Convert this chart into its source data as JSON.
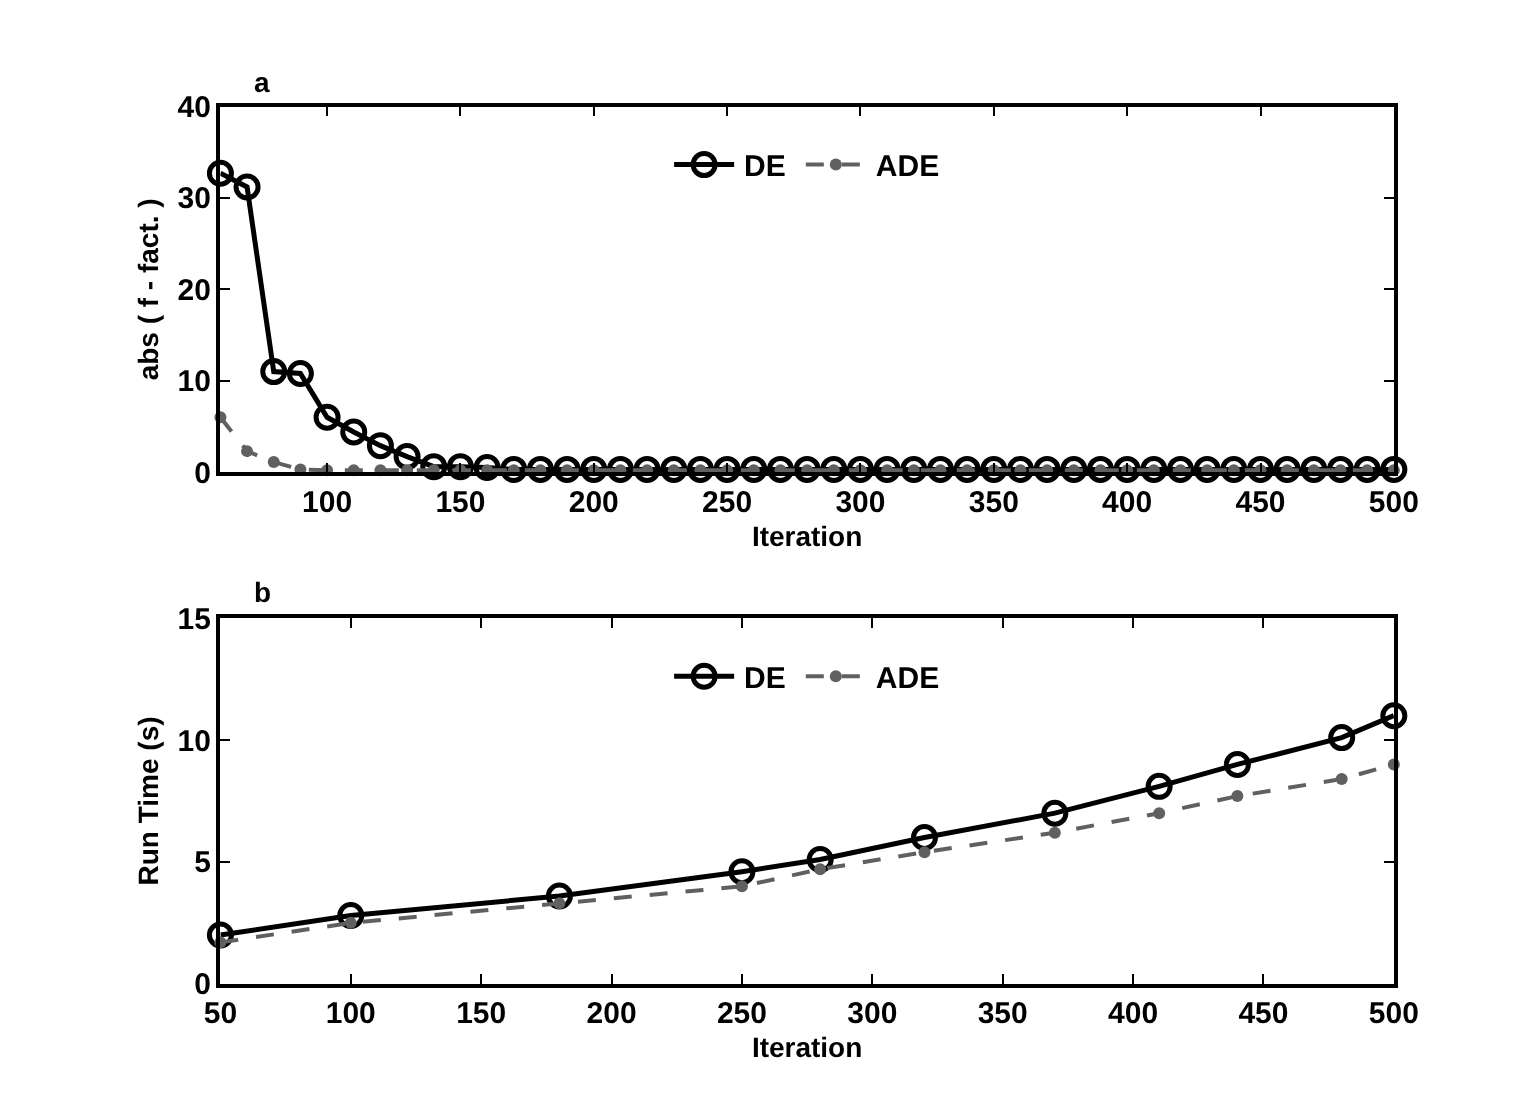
{
  "chart_data": [
    {
      "type": "line",
      "title": "a",
      "xlabel": "Iteration",
      "ylabel": "abs ( f - fact. )",
      "xlim": [
        60,
        500
      ],
      "ylim": [
        0,
        40
      ],
      "xticks": [
        100,
        150,
        200,
        250,
        300,
        350,
        400,
        450,
        500
      ],
      "yticks": [
        0,
        10,
        20,
        30,
        40
      ],
      "legend": "top",
      "x": [
        60,
        70,
        80,
        90,
        100,
        110,
        120,
        130,
        140,
        150,
        160,
        170,
        180,
        190,
        200,
        210,
        220,
        230,
        240,
        250,
        260,
        270,
        280,
        290,
        300,
        310,
        320,
        330,
        340,
        350,
        360,
        370,
        380,
        390,
        400,
        410,
        420,
        430,
        440,
        450,
        460,
        470,
        480,
        490,
        500
      ],
      "series": [
        {
          "name": "DE",
          "color": "#000000",
          "marker": "circle",
          "line_style": "solid",
          "values": [
            32.7,
            31.2,
            11,
            10.8,
            6,
            4.4,
            2.9,
            1.7,
            0.6,
            0.6,
            0.5,
            0.3,
            0.3,
            0.3,
            0.3,
            0.3,
            0.3,
            0.3,
            0.3,
            0.3,
            0.3,
            0.3,
            0.3,
            0.3,
            0.3,
            0.3,
            0.3,
            0.3,
            0.3,
            0.3,
            0.3,
            0.3,
            0.3,
            0.3,
            0.3,
            0.3,
            0.3,
            0.3,
            0.3,
            0.3,
            0.3,
            0.3,
            0.3,
            0.3,
            0.3
          ]
        },
        {
          "name": "ADE",
          "color": "#606060",
          "marker": "circle",
          "line_style": "dashed",
          "values": [
            6,
            2.3,
            1.1,
            0.3,
            0.2,
            0.2,
            0.2,
            0.2,
            0.2,
            0.2,
            0.2,
            0.2,
            0.2,
            0.2,
            0.2,
            0.2,
            0.2,
            0.2,
            0.2,
            0.2,
            0.2,
            0.2,
            0.2,
            0.2,
            0.2,
            0.2,
            0.2,
            0.2,
            0.2,
            0.2,
            0.2,
            0.2,
            0.2,
            0.2,
            0.2,
            0.2,
            0.2,
            0.2,
            0.2,
            0.2,
            0.2,
            0.2,
            0.2,
            0.2,
            0.2
          ]
        }
      ]
    },
    {
      "type": "line",
      "title": "b",
      "xlabel": "Iteration",
      "ylabel": "Run Time (s)",
      "xlim": [
        50,
        500
      ],
      "ylim": [
        0,
        15
      ],
      "xticks": [
        50,
        100,
        150,
        200,
        250,
        300,
        350,
        400,
        450,
        500
      ],
      "yticks": [
        0,
        5,
        10,
        15
      ],
      "legend": "top",
      "x": [
        50,
        100,
        180,
        250,
        280,
        320,
        370,
        410,
        440,
        480,
        500
      ],
      "series": [
        {
          "name": "DE",
          "color": "#000000",
          "marker": "circle",
          "line_style": "solid",
          "values": [
            2,
            2.8,
            3.6,
            4.6,
            5.1,
            6.0,
            7.0,
            8.1,
            9.0,
            10.1,
            11
          ]
        },
        {
          "name": "ADE",
          "color": "#606060",
          "marker": "circle",
          "line_style": "dashed",
          "values": [
            1.7,
            2.5,
            3.3,
            4.0,
            4.7,
            5.4,
            6.2,
            7.0,
            7.7,
            8.4,
            9
          ]
        }
      ]
    }
  ]
}
